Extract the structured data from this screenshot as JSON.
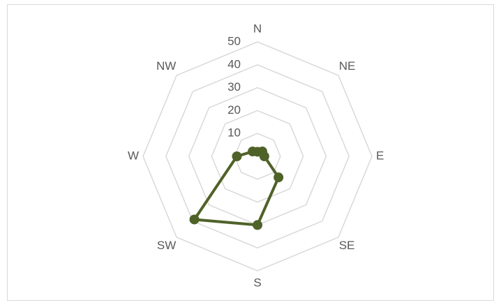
{
  "chart_data": {
    "type": "radar",
    "categories": [
      "N",
      "NE",
      "E",
      "SE",
      "S",
      "SW",
      "W",
      "NW"
    ],
    "values": [
      2,
      3,
      3,
      13,
      30,
      39,
      9,
      3
    ],
    "color": "#4f6228",
    "ylim": [
      0,
      50
    ],
    "yticks": [
      10,
      20,
      30,
      40,
      50
    ],
    "grid": true
  }
}
